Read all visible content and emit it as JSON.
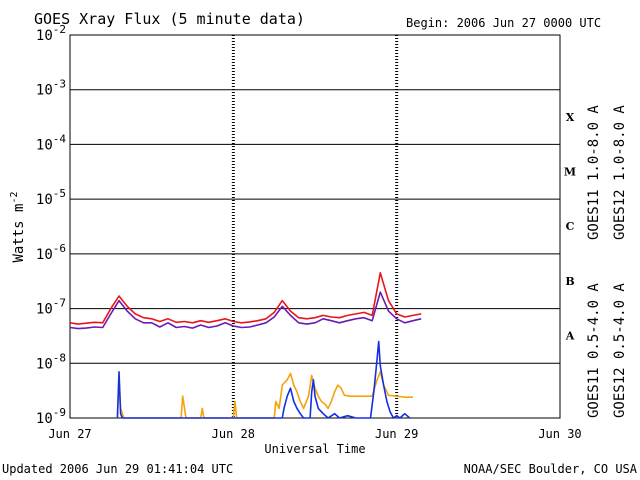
{
  "header": {
    "title": "GOES Xray Flux (5 minute data)",
    "begin": "Begin:  2006 Jun 27 0000 UTC"
  },
  "footer": {
    "updated": "Updated 2006 Jun 29 01:41:04 UTC",
    "source": "NOAA/SEC Boulder, CO USA"
  },
  "colors": {
    "goes11_long": "#6a1bb5",
    "goes12_long": "#e8151b",
    "goes11_short": "#f5a30a",
    "goes12_short": "#1530e0",
    "grid": "#000000",
    "background": "#ffffff"
  },
  "chart_data": {
    "type": "line",
    "title": "GOES Xray Flux (5 minute data)",
    "xlabel": "Universal Time",
    "ylabel_text": "Watts m",
    "ylabel_exp": "-2",
    "y_scale": "log",
    "ylim": [
      1e-09,
      0.01
    ],
    "xlim_days": [
      0,
      3
    ],
    "grid": "horizontal at each decade, dotted vertical at day boundaries",
    "y_ticks": [
      {
        "base": "10",
        "exp": "-2",
        "value": 0.01
      },
      {
        "base": "10",
        "exp": "-3",
        "value": 0.001
      },
      {
        "base": "10",
        "exp": "-4",
        "value": 0.0001
      },
      {
        "base": "10",
        "exp": "-5",
        "value": 1e-05
      },
      {
        "base": "10",
        "exp": "-6",
        "value": 1e-06
      },
      {
        "base": "10",
        "exp": "-7",
        "value": 1e-07
      },
      {
        "base": "10",
        "exp": "-8",
        "value": 1e-08
      },
      {
        "base": "10",
        "exp": "-9",
        "value": 1e-09
      }
    ],
    "x_ticks": [
      {
        "label": "Jun 27",
        "day": 0
      },
      {
        "label": "Jun 28",
        "day": 1
      },
      {
        "label": "Jun 29",
        "day": 2
      },
      {
        "label": "Jun 30",
        "day": 3
      }
    ],
    "flare_classes": [
      {
        "label": "X",
        "value": 0.00032
      },
      {
        "label": "M",
        "value": 3.2e-05
      },
      {
        "label": "C",
        "value": 3.2e-06
      },
      {
        "label": "B",
        "value": 3.2e-07
      },
      {
        "label": "A",
        "value": 3.2e-08
      }
    ],
    "legend_right": [
      {
        "text": "GOES11 1.0-8.0 A",
        "color": "#6a1bb5"
      },
      {
        "text": "GOES12 1.0-8.0 A",
        "color": "#e8151b"
      },
      {
        "text": "GOES11 0.5-4.0 A",
        "color": "#f5a30a"
      },
      {
        "text": "GOES12 0.5-4.0 A",
        "color": "#1530e0"
      }
    ],
    "series": [
      {
        "name": "GOES11 1.0-8.0 A",
        "color": "#6a1bb5",
        "points": [
          [
            0,
            4.5e-08
          ],
          [
            0.05,
            4.3e-08
          ],
          [
            0.1,
            4.4e-08
          ],
          [
            0.15,
            4.6e-08
          ],
          [
            0.2,
            4.5e-08
          ],
          [
            0.25,
            8e-08
          ],
          [
            0.3,
            1.4e-07
          ],
          [
            0.35,
            9e-08
          ],
          [
            0.4,
            6.5e-08
          ],
          [
            0.45,
            5.5e-08
          ],
          [
            0.5,
            5.5e-08
          ],
          [
            0.55,
            4.6e-08
          ],
          [
            0.6,
            5.5e-08
          ],
          [
            0.65,
            4.5e-08
          ],
          [
            0.7,
            4.7e-08
          ],
          [
            0.75,
            4.4e-08
          ],
          [
            0.8,
            5e-08
          ],
          [
            0.85,
            4.5e-08
          ],
          [
            0.9,
            4.8e-08
          ],
          [
            0.95,
            5.5e-08
          ],
          [
            1.0,
            4.8e-08
          ],
          [
            1.05,
            4.5e-08
          ],
          [
            1.1,
            4.6e-08
          ],
          [
            1.15,
            5e-08
          ],
          [
            1.2,
            5.5e-08
          ],
          [
            1.25,
            7e-08
          ],
          [
            1.3,
            1.1e-07
          ],
          [
            1.35,
            7.5e-08
          ],
          [
            1.4,
            5.5e-08
          ],
          [
            1.45,
            5.2e-08
          ],
          [
            1.5,
            5.5e-08
          ],
          [
            1.55,
            6.5e-08
          ],
          [
            1.6,
            6e-08
          ],
          [
            1.65,
            5.5e-08
          ],
          [
            1.7,
            6e-08
          ],
          [
            1.75,
            6.5e-08
          ],
          [
            1.8,
            6.8e-08
          ],
          [
            1.85,
            6e-08
          ],
          [
            1.9,
            2e-07
          ],
          [
            1.95,
            9e-08
          ],
          [
            2.0,
            6.5e-08
          ],
          [
            2.05,
            5.5e-08
          ],
          [
            2.1,
            6e-08
          ],
          [
            2.15,
            6.5e-08
          ]
        ]
      },
      {
        "name": "GOES12 1.0-8.0 A",
        "color": "#e8151b",
        "points": [
          [
            0,
            5.5e-08
          ],
          [
            0.05,
            5.2e-08
          ],
          [
            0.1,
            5.4e-08
          ],
          [
            0.15,
            5.6e-08
          ],
          [
            0.2,
            5.5e-08
          ],
          [
            0.25,
            1e-07
          ],
          [
            0.3,
            1.7e-07
          ],
          [
            0.35,
            1.1e-07
          ],
          [
            0.4,
            8e-08
          ],
          [
            0.45,
            6.8e-08
          ],
          [
            0.5,
            6.5e-08
          ],
          [
            0.55,
            5.8e-08
          ],
          [
            0.6,
            6.5e-08
          ],
          [
            0.65,
            5.6e-08
          ],
          [
            0.7,
            5.8e-08
          ],
          [
            0.75,
            5.5e-08
          ],
          [
            0.8,
            6e-08
          ],
          [
            0.85,
            5.6e-08
          ],
          [
            0.9,
            6e-08
          ],
          [
            0.95,
            6.5e-08
          ],
          [
            1.0,
            5.8e-08
          ],
          [
            1.05,
            5.5e-08
          ],
          [
            1.1,
            5.7e-08
          ],
          [
            1.15,
            6e-08
          ],
          [
            1.2,
            6.5e-08
          ],
          [
            1.25,
            8.5e-08
          ],
          [
            1.3,
            1.4e-07
          ],
          [
            1.35,
            9e-08
          ],
          [
            1.4,
            6.8e-08
          ],
          [
            1.45,
            6.5e-08
          ],
          [
            1.5,
            6.8e-08
          ],
          [
            1.55,
            7.5e-08
          ],
          [
            1.6,
            7e-08
          ],
          [
            1.65,
            6.8e-08
          ],
          [
            1.7,
            7.5e-08
          ],
          [
            1.75,
            8e-08
          ],
          [
            1.8,
            8.5e-08
          ],
          [
            1.85,
            7.5e-08
          ],
          [
            1.9,
            4.5e-07
          ],
          [
            1.95,
            1.4e-07
          ],
          [
            2.0,
            8e-08
          ],
          [
            2.05,
            7e-08
          ],
          [
            2.1,
            7.5e-08
          ],
          [
            2.15,
            8e-08
          ]
        ]
      },
      {
        "name": "GOES11 0.5-4.0 A",
        "color": "#f5a30a",
        "points": [
          [
            0.29,
            1e-09
          ],
          [
            0.3,
            5.5e-09
          ],
          [
            0.31,
            1.5e-09
          ],
          [
            0.33,
            1e-09
          ],
          [
            0.68,
            1e-09
          ],
          [
            0.69,
            2.5e-09
          ],
          [
            0.71,
            1e-09
          ],
          [
            0.8,
            1e-09
          ],
          [
            0.81,
            1.5e-09
          ],
          [
            0.82,
            1e-09
          ],
          [
            1.0,
            1e-09
          ],
          [
            1.01,
            2e-09
          ],
          [
            1.02,
            1e-09
          ],
          [
            1.25,
            1e-09
          ],
          [
            1.26,
            2e-09
          ],
          [
            1.28,
            1.5e-09
          ],
          [
            1.3,
            4e-09
          ],
          [
            1.33,
            5e-09
          ],
          [
            1.35,
            6.5e-09
          ],
          [
            1.37,
            4e-09
          ],
          [
            1.39,
            3e-09
          ],
          [
            1.41,
            2e-09
          ],
          [
            1.43,
            1.5e-09
          ],
          [
            1.46,
            2.5e-09
          ],
          [
            1.48,
            6e-09
          ],
          [
            1.5,
            3.5e-09
          ],
          [
            1.52,
            2.5e-09
          ],
          [
            1.54,
            2e-09
          ],
          [
            1.56,
            1.8e-09
          ],
          [
            1.58,
            1.5e-09
          ],
          [
            1.6,
            2e-09
          ],
          [
            1.62,
            3e-09
          ],
          [
            1.64,
            4e-09
          ],
          [
            1.66,
            3.5e-09
          ],
          [
            1.68,
            2.6e-09
          ],
          [
            1.72,
            2.5e-09
          ],
          [
            1.8,
            2.5e-09
          ],
          [
            1.85,
            2.5e-09
          ],
          [
            1.88,
            5e-09
          ],
          [
            1.9,
            7e-09
          ],
          [
            1.92,
            4e-09
          ],
          [
            1.95,
            2.6e-09
          ],
          [
            2.0,
            2.5e-09
          ],
          [
            2.05,
            2.4e-09
          ],
          [
            2.1,
            2.4e-09
          ]
        ]
      },
      {
        "name": "GOES12 0.5-4.0 A",
        "color": "#1530e0",
        "points": [
          [
            0.29,
            1e-09
          ],
          [
            0.3,
            7e-09
          ],
          [
            0.31,
            1.2e-09
          ],
          [
            0.32,
            1e-09
          ],
          [
            1.3,
            1e-09
          ],
          [
            1.31,
            1.5e-09
          ],
          [
            1.33,
            2.5e-09
          ],
          [
            1.35,
            3.5e-09
          ],
          [
            1.37,
            2e-09
          ],
          [
            1.39,
            1.5e-09
          ],
          [
            1.41,
            1.2e-09
          ],
          [
            1.43,
            1e-09
          ],
          [
            1.47,
            1e-09
          ],
          [
            1.48,
            3e-09
          ],
          [
            1.49,
            5e-09
          ],
          [
            1.5,
            2.5e-09
          ],
          [
            1.52,
            1.5e-09
          ],
          [
            1.55,
            1.2e-09
          ],
          [
            1.58,
            1e-09
          ],
          [
            1.62,
            1.2e-09
          ],
          [
            1.65,
            1e-09
          ],
          [
            1.7,
            1.1e-09
          ],
          [
            1.75,
            1e-09
          ],
          [
            1.8,
            1e-09
          ],
          [
            1.84,
            1e-09
          ],
          [
            1.86,
            3e-09
          ],
          [
            1.88,
            1.2e-08
          ],
          [
            1.89,
            2.5e-08
          ],
          [
            1.9,
            9e-09
          ],
          [
            1.92,
            4e-09
          ],
          [
            1.94,
            2e-09
          ],
          [
            1.96,
            1.3e-09
          ],
          [
            1.98,
            1e-09
          ],
          [
            2.0,
            1.1e-09
          ],
          [
            2.02,
            1e-09
          ],
          [
            2.05,
            1.2e-09
          ],
          [
            2.08,
            1e-09
          ]
        ]
      }
    ]
  }
}
